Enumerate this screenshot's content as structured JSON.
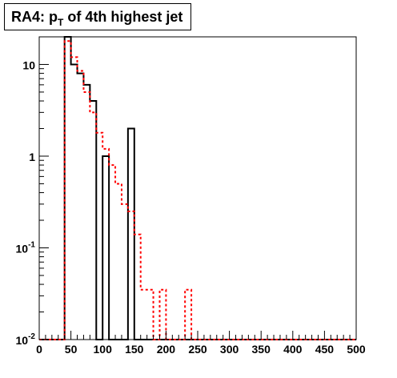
{
  "chart_data": {
    "type": "step-histogram",
    "title": {
      "prefix": "RA4: p",
      "subscript": "T",
      "suffix": " of 4th highest jet"
    },
    "xlim": [
      0,
      500
    ],
    "ylim": [
      0.01,
      20
    ],
    "yscale": "log",
    "bin_width": 10,
    "x_ticks": [
      0,
      50,
      100,
      150,
      200,
      250,
      300,
      350,
      400,
      450,
      500
    ],
    "x_tick_labels": [
      "0",
      "50",
      "100",
      "150",
      "200",
      "250",
      "300",
      "350",
      "400",
      "450",
      "500"
    ],
    "y_ticks": [
      {
        "value": 0.01,
        "base": "10",
        "exp": "-2"
      },
      {
        "value": 0.1,
        "base": "10",
        "exp": "-1"
      },
      {
        "value": 1,
        "base": "1",
        "exp": ""
      },
      {
        "value": 10,
        "base": "10",
        "exp": ""
      }
    ],
    "series": [
      {
        "style": "solid",
        "color": "#000000",
        "bins": [
          {
            "x": 40,
            "y": 20
          },
          {
            "x": 50,
            "y": 10
          },
          {
            "x": 60,
            "y": 8
          },
          {
            "x": 70,
            "y": 6
          },
          {
            "x": 80,
            "y": 4
          },
          {
            "x": 90,
            "y": 0.01
          },
          {
            "x": 100,
            "y": 1
          },
          {
            "x": 110,
            "y": 0.01
          },
          {
            "x": 140,
            "y": 2
          },
          {
            "x": 150,
            "y": 0.01
          }
        ]
      },
      {
        "style": "dashed",
        "color": "#ff0000",
        "bins": [
          {
            "x": 40,
            "y": 18
          },
          {
            "x": 50,
            "y": 12
          },
          {
            "x": 60,
            "y": 8.5
          },
          {
            "x": 70,
            "y": 5
          },
          {
            "x": 80,
            "y": 3
          },
          {
            "x": 90,
            "y": 1.8
          },
          {
            "x": 100,
            "y": 1.2
          },
          {
            "x": 110,
            "y": 0.8
          },
          {
            "x": 120,
            "y": 0.5
          },
          {
            "x": 130,
            "y": 0.3
          },
          {
            "x": 140,
            "y": 0.25
          },
          {
            "x": 150,
            "y": 0.14
          },
          {
            "x": 160,
            "y": 0.035
          },
          {
            "x": 170,
            "y": 0.035
          },
          {
            "x": 180,
            "y": 0.01
          },
          {
            "x": 190,
            "y": 0.035
          },
          {
            "x": 200,
            "y": 0.01
          },
          {
            "x": 230,
            "y": 0.035
          },
          {
            "x": 240,
            "y": 0.01
          }
        ]
      }
    ]
  }
}
